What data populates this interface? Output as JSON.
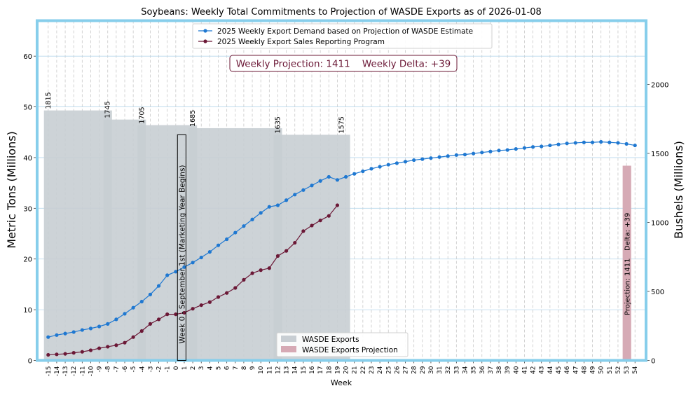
{
  "chart_data": {
    "type": "line",
    "title": "Soybeans: Weekly Total Commitments to Projection of WASDE Exports as of 2026-01-08",
    "xlabel": "Week",
    "ylabel_left": "Metric Tons (Millions)",
    "ylabel_right": "Bushels (Millions)",
    "ylim_left": [
      0,
      67
    ],
    "ylim_right": [
      0,
      2462
    ],
    "yticks_left": [
      0,
      10,
      20,
      30,
      40,
      50,
      60
    ],
    "yticks_right": [
      0,
      500,
      1000,
      1500,
      2000
    ],
    "weeks": [
      -15,
      -14,
      -13,
      -12,
      -11,
      -10,
      -9,
      -8,
      -7,
      -6,
      -5,
      -4,
      -3,
      -2,
      -1,
      0,
      1,
      2,
      3,
      4,
      5,
      6,
      7,
      8,
      9,
      10,
      11,
      12,
      13,
      14,
      15,
      16,
      17,
      18,
      19,
      20,
      21,
      22,
      23,
      24,
      25,
      26,
      27,
      28,
      29,
      30,
      31,
      32,
      33,
      34,
      35,
      36,
      37,
      38,
      39,
      40,
      41,
      42,
      43,
      44,
      45,
      46,
      47,
      48,
      49,
      50,
      51,
      52,
      53,
      54
    ],
    "grid": true,
    "legend_top": [
      {
        "label": "2025 Weekly Export Demand based on Projection of WASDE Estimate",
        "color": "#1f78d1"
      },
      {
        "label": "2025 Weekly Export Sales Reporting Program",
        "color": "#6b1836"
      }
    ],
    "legend_bottom": [
      {
        "label": "WASDE Exports",
        "color": "#c8ced3"
      },
      {
        "label": "WASDE Exports Projection",
        "color": "#d6aab5"
      }
    ],
    "annotation_box": "Weekly Projection: 1411    Weekly Delta: +39",
    "marketing_year_label": "Week 0 - September 1st (Marketing Year Begins)",
    "marketing_year_bar": {
      "x_start": 0.2,
      "x_end": 1.2,
      "top": 44.5
    },
    "wasde_steps": [
      {
        "x_start": -15,
        "x_end": -8,
        "value": 49.3,
        "label": "1815"
      },
      {
        "x_start": -8,
        "x_end": -4,
        "value": 47.5,
        "label": "1745"
      },
      {
        "x_start": -4,
        "x_end": 2,
        "value": 46.4,
        "label": "1705"
      },
      {
        "x_start": 2,
        "x_end": 12,
        "value": 45.8,
        "label": "1685"
      },
      {
        "x_start": 12,
        "x_end": 20,
        "value": 44.5,
        "label": "1635"
      },
      {
        "x_start": 19.5,
        "x_end": 20,
        "value": 44.5,
        "label": "1575"
      }
    ],
    "projection_bar": {
      "week": 53,
      "value": 38.4,
      "label_projection": "Projection: 1411",
      "label_delta": "Delta: +39"
    },
    "series": [
      {
        "name": "2025 Weekly Export Demand based on Projection of WASDE Estimate",
        "color": "#1f78d1",
        "x_start": -15,
        "values": [
          4.6,
          5.0,
          5.3,
          5.6,
          6.0,
          6.3,
          6.7,
          7.2,
          8.1,
          9.2,
          10.4,
          11.6,
          13.0,
          14.7,
          16.8,
          17.5,
          18.4,
          19.3,
          20.3,
          21.4,
          22.7,
          23.9,
          25.2,
          26.5,
          27.8,
          29.1,
          30.3,
          30.6,
          31.6,
          32.7,
          33.6,
          34.5,
          35.4,
          36.2,
          35.6,
          36.2,
          36.8,
          37.3,
          37.8,
          38.2,
          38.6,
          38.9,
          39.2,
          39.5,
          39.7,
          39.9,
          40.1,
          40.3,
          40.5,
          40.6,
          40.8,
          41.0,
          41.2,
          41.4,
          41.5,
          41.7,
          41.9,
          42.1,
          42.2,
          42.4,
          42.6,
          42.8,
          42.9,
          43.0,
          43.0,
          43.1,
          43.0,
          42.9,
          42.7,
          42.4
        ]
      },
      {
        "name": "2025 Weekly Export Sales Reporting Program",
        "color": "#6b1836",
        "x_start": -15,
        "values": [
          1.1,
          1.2,
          1.3,
          1.5,
          1.7,
          2.0,
          2.4,
          2.7,
          3.0,
          3.5,
          4.6,
          5.8,
          7.2,
          8.1,
          9.1,
          9.1,
          9.4,
          10.2,
          10.9,
          11.5,
          12.5,
          13.3,
          14.3,
          15.9,
          17.2,
          17.8,
          18.2,
          20.6,
          21.6,
          23.2,
          25.5,
          26.6,
          27.6,
          28.5,
          30.6
        ]
      }
    ]
  }
}
